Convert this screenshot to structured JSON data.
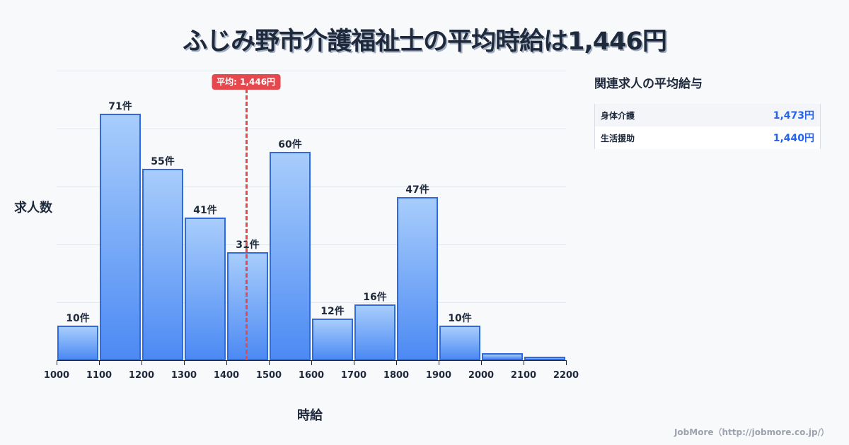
{
  "title": "ふじみ野市介護福祉士の平均時給は1,446円",
  "chart_data": {
    "type": "bar",
    "title": "ふじみ野市介護福祉士の平均時給は1,446円",
    "xlabel": "時給",
    "ylabel": "求人数",
    "bin_edges": [
      1000,
      1100,
      1200,
      1300,
      1400,
      1500,
      1600,
      1700,
      1800,
      1900,
      2000,
      2100,
      2200
    ],
    "categories": [
      "1000-1100",
      "1100-1200",
      "1200-1300",
      "1300-1400",
      "1400-1500",
      "1500-1600",
      "1600-1700",
      "1700-1800",
      "1800-1900",
      "1900-2000",
      "2000-2100",
      "2100-2200"
    ],
    "values": [
      10,
      71,
      55,
      41,
      31,
      60,
      12,
      16,
      47,
      10,
      2,
      1
    ],
    "labels": [
      "10件",
      "71件",
      "55件",
      "41件",
      "31件",
      "60件",
      "12件",
      "16件",
      "47件",
      "10件",
      "",
      ""
    ],
    "x_ticks": [
      "1000",
      "1100",
      "1200",
      "1300",
      "1400",
      "1500",
      "1600",
      "1700",
      "1800",
      "1900",
      "2000",
      "2100",
      "2200"
    ],
    "xlim": [
      1000,
      2200
    ],
    "ylim": [
      0,
      83.3
    ],
    "grid": true,
    "average": {
      "value": 1446,
      "label": "平均: 1,446円",
      "color": "#e5484d"
    },
    "bar_color": "#4c8af3",
    "bar_border_color": "#2f6ae0"
  },
  "side_panel": {
    "title": "関連求人の平均給与",
    "rows": [
      {
        "name": "身体介護",
        "value": "1,473円"
      },
      {
        "name": "生活援助",
        "value": "1,440円"
      }
    ]
  },
  "footer": "JobMore（http://jobmore.co.jp/）"
}
